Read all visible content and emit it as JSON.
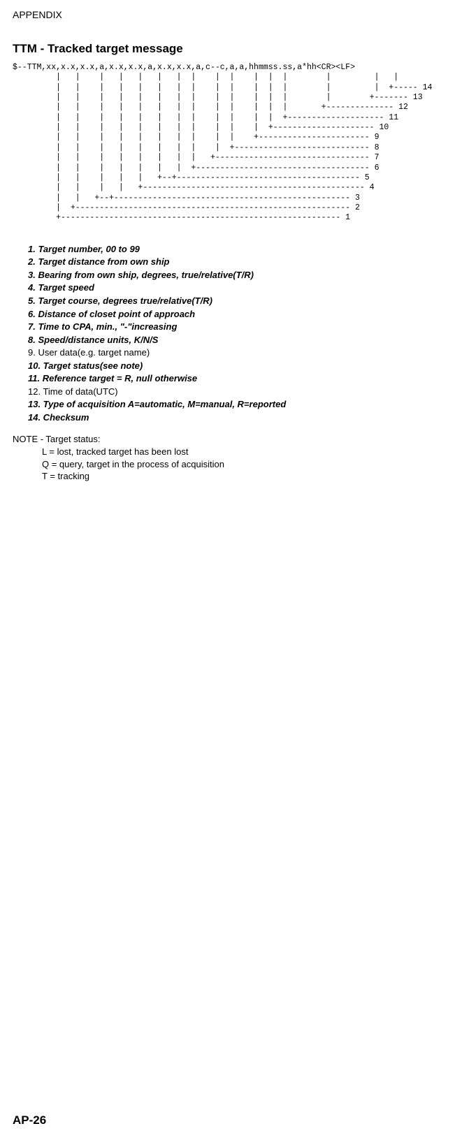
{
  "header": "APPENDIX",
  "title": "TTM - Tracked target message",
  "diagram": "$--TTM,xx,x.x,x.x,a,x.x,x.x,a,x.x,x.x,a,c--c,a,a,hhmmss.ss,a*hh<CR><LF>\n         |   |    |   |   |   |   |  |    |  |    |  |  |        |         |   |\n         |   |    |   |   |   |   |  |    |  |    |  |  |        |         |  +----- 14\n         |   |    |   |   |   |   |  |    |  |    |  |  |        |        +------- 13\n         |   |    |   |   |   |   |  |    |  |    |  |  |       +-------------- 12\n         |   |    |   |   |   |   |  |    |  |    |  |  +-------------------- 11\n         |   |    |   |   |   |   |  |    |  |    |  +--------------------- 10\n         |   |    |   |   |   |   |  |    |  |    +----------------------- 9\n         |   |    |   |   |   |   |  |    |  +---------------------------- 8\n         |   |    |   |   |   |   |  |   +-------------------------------- 7\n         |   |    |   |   |   |   |  +------------------------------------ 6\n         |   |    |   |   |   +--+-------------------------------------- 5\n         |   |    |   |   +---------------------------------------------- 4\n         |   |   +--+------------------------------------------------- 3\n         |  +--------------------------------------------------------- 2\n         +---------------------------------------------------------- 1",
  "fields": [
    {
      "text": "1. Target number, 00 to 99",
      "bold": true
    },
    {
      "text": "2. Target distance from own ship",
      "bold": true
    },
    {
      "text": "3. Bearing from own ship, degrees, true/relative(T/R)",
      "bold": true
    },
    {
      "text": "4. Target speed",
      "bold": true
    },
    {
      "text": "5. Target course, degrees true/relative(T/R)",
      "bold": true
    },
    {
      "text": "6. Distance of closet point of approach",
      "bold": true
    },
    {
      "text": "7. Time to CPA, min., \"-\"increasing",
      "bold": true
    },
    {
      "text": "8. Speed/distance units, K/N/S",
      "bold": true
    },
    {
      "text": "9. User data(e.g. target name)",
      "bold": false
    },
    {
      "text": "10. Target status(see note)",
      "bold": true
    },
    {
      "text": "11. Reference target = R, null otherwise",
      "bold": true
    },
    {
      "text": "12. Time of data(UTC)",
      "bold": false
    },
    {
      "text": "13. Type of acquisition A=automatic, M=manual, R=reported",
      "bold": true
    },
    {
      "text": "14. Checksum",
      "bold": true
    }
  ],
  "note": {
    "title": "NOTE - Target status:",
    "lines": [
      "L = lost, tracked target has been lost",
      "Q = query, target in the process of acquisition",
      "T = tracking"
    ]
  },
  "footer": "AP-26"
}
